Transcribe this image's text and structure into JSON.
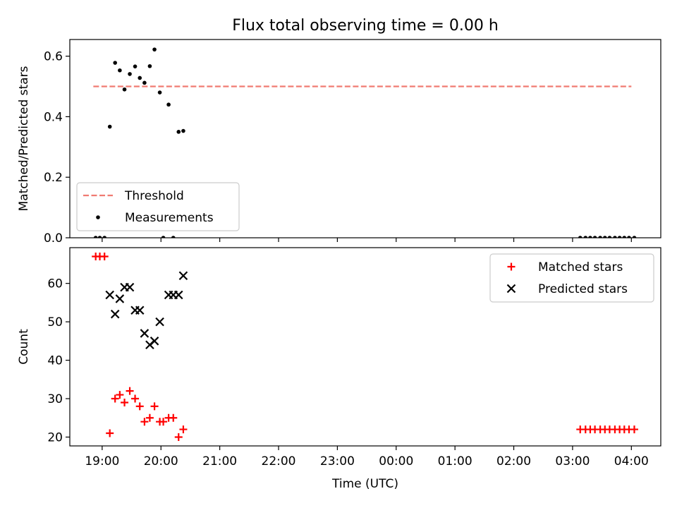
{
  "title": "Flux total observing time = 0.00 h",
  "chart_data": [
    {
      "type": "scatter",
      "ylabel": "Matched/Predicted stars",
      "ylim": [
        0,
        0.655
      ],
      "yticks": [
        0.0,
        0.2,
        0.4,
        0.6
      ],
      "ytick_labels": [
        "0.0",
        "0.2",
        "0.4",
        "0.6"
      ],
      "legend_position": "lower-left",
      "series": [
        {
          "name": "Threshold",
          "kind": "dashed-line",
          "color": "#f07b72",
          "x": [
            18.85,
            28.0
          ],
          "y": [
            0.5,
            0.5
          ]
        },
        {
          "name": "Measurements",
          "kind": "dot",
          "color": "#000000",
          "x": [
            18.89,
            18.96,
            19.04,
            19.13,
            19.22,
            19.3,
            19.38,
            19.47,
            19.56,
            19.64,
            19.72,
            19.81,
            19.89,
            19.98,
            20.04,
            20.13,
            20.21,
            20.3,
            20.38,
            27.13,
            27.22,
            27.3,
            27.38,
            27.47,
            27.55,
            27.63,
            27.72,
            27.8,
            27.88,
            27.96,
            28.05
          ],
          "y": [
            0.0,
            0.0,
            0.0,
            0.367,
            0.578,
            0.553,
            0.49,
            0.541,
            0.566,
            0.528,
            0.512,
            0.567,
            0.622,
            0.48,
            0.0,
            0.44,
            0.0,
            0.35,
            0.353,
            0.0,
            0.0,
            0.0,
            0.0,
            0.0,
            0.0,
            0.0,
            0.0,
            0.0,
            0.0,
            0.0,
            0.0
          ]
        }
      ]
    },
    {
      "type": "scatter",
      "xlabel": "Time (UTC)",
      "ylabel": "Count",
      "ylim": [
        17.7,
        69.3
      ],
      "yticks": [
        20,
        30,
        40,
        50,
        60
      ],
      "ytick_labels": [
        "20",
        "30",
        "40",
        "50",
        "60"
      ],
      "xlim": [
        18.45,
        28.5
      ],
      "xticks": [
        19,
        20,
        21,
        22,
        23,
        24,
        25,
        26,
        27,
        28
      ],
      "xtick_labels": [
        "19:00",
        "20:00",
        "21:00",
        "22:00",
        "23:00",
        "00:00",
        "01:00",
        "02:00",
        "03:00",
        "04:00"
      ],
      "legend_position": "upper-right",
      "series": [
        {
          "name": "Matched stars",
          "kind": "plus",
          "color": "#ff0000",
          "x": [
            18.89,
            18.96,
            19.04,
            19.13,
            19.22,
            19.3,
            19.38,
            19.47,
            19.56,
            19.64,
            19.72,
            19.81,
            19.89,
            19.98,
            20.04,
            20.13,
            20.21,
            20.3,
            20.38,
            27.13,
            27.22,
            27.3,
            27.38,
            27.47,
            27.55,
            27.63,
            27.72,
            27.8,
            27.88,
            27.96,
            28.05
          ],
          "y": [
            67,
            67,
            67,
            21,
            30,
            31,
            29,
            32,
            30,
            28,
            24,
            25,
            28,
            24,
            24,
            25,
            25,
            20,
            22,
            22,
            22,
            22,
            22,
            22,
            22,
            22,
            22,
            22,
            22,
            22,
            22
          ]
        },
        {
          "name": "Predicted stars",
          "kind": "cross",
          "color": "#000000",
          "x": [
            19.13,
            19.22,
            19.3,
            19.38,
            19.47,
            19.56,
            19.64,
            19.72,
            19.81,
            19.89,
            19.98,
            20.13,
            20.21,
            20.3,
            20.38
          ],
          "y": [
            57,
            52,
            56,
            59,
            59,
            53,
            53,
            47,
            44,
            45,
            50,
            57,
            57,
            57,
            62
          ]
        }
      ]
    }
  ]
}
